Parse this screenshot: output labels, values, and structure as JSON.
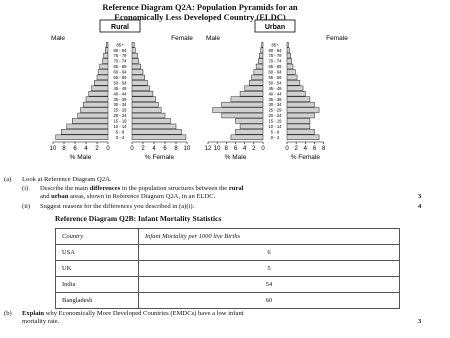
{
  "title": [
    "Reference Diagram Q2A:  Population Pyramids for an",
    "Economically Less Developed Country (ELDC)"
  ],
  "chart_data": [
    {
      "type": "pyramid",
      "title": "Rural",
      "left_label": "Male",
      "right_label": "Female",
      "categories": [
        "85+",
        "80 - 84",
        "75 - 79",
        "70 - 74",
        "65 - 69",
        "60 - 64",
        "55 - 59",
        "50 - 54",
        "45 - 49",
        "40 - 44",
        "35 - 39",
        "30 - 34",
        "25 - 29",
        "20 - 24",
        "15 - 19",
        "10 - 14",
        "5 - 9",
        "0 - 4"
      ],
      "series": [
        {
          "name": "% Male",
          "side": "left",
          "values": [
            0.3,
            0.5,
            0.8,
            1,
            1.5,
            1.8,
            2,
            2.5,
            3,
            3.5,
            4,
            4.5,
            5,
            5.5,
            6.5,
            7.5,
            8.5,
            9.5
          ]
        },
        {
          "name": "% Female",
          "side": "right",
          "values": [
            0.4,
            0.6,
            1,
            1.2,
            1.6,
            2,
            2.3,
            2.8,
            3.2,
            3.8,
            4.3,
            4.8,
            5.3,
            6,
            7,
            8,
            9,
            9.8
          ]
        }
      ],
      "left_xlim": [
        0,
        10
      ],
      "left_xticks": [
        10,
        8,
        6,
        4,
        2,
        0
      ],
      "right_xlim": [
        0,
        10
      ],
      "right_xticks": [
        0,
        2,
        4,
        6,
        8,
        10
      ]
    },
    {
      "type": "pyramid",
      "title": "Urban",
      "left_label": "Male",
      "right_label": "Female",
      "categories": [
        "85+",
        "80 - 84",
        "75 - 79",
        "70 - 74",
        "65 - 69",
        "60 - 64",
        "55 - 59",
        "50 - 54",
        "45 - 49",
        "40 - 44",
        "35 - 39",
        "30 - 34",
        "25 - 29",
        "20 - 24",
        "15 - 19",
        "10 - 14",
        "5 - 9",
        "0 - 4"
      ],
      "series": [
        {
          "name": "% Male",
          "side": "left",
          "values": [
            0.3,
            0.5,
            0.8,
            1,
            1.5,
            2,
            2.5,
            3,
            4,
            5,
            7,
            9,
            11,
            9,
            6,
            5,
            6,
            7
          ]
        },
        {
          "name": "% Female",
          "side": "right",
          "values": [
            0.3,
            0.5,
            0.8,
            1,
            1.3,
            1.8,
            2.2,
            2.8,
            3.5,
            4,
            5,
            6,
            7,
            6,
            5,
            5,
            6,
            7
          ]
        }
      ],
      "left_xlim": [
        0,
        12
      ],
      "left_xticks": [
        12,
        10,
        8,
        6,
        4,
        2,
        0
      ],
      "right_xlim": [
        0,
        8
      ],
      "right_xticks": [
        0,
        2,
        4,
        6,
        8
      ]
    }
  ],
  "questions": [
    {
      "label": "(a)",
      "parts": [
        "Look at Reference Diagram Q2A."
      ]
    },
    {
      "label": "(i)",
      "parts": [
        "Describe the main ",
        "differences",
        " in the population structures between the ",
        "rural",
        "\nand ",
        "urban",
        " areas, shown in Reference Diagram Q2A, in an ELDC."
      ],
      "marks": 3
    },
    {
      "label": "(ii)",
      "parts": [
        "Suggest reasons for the differences you described in (a)(i)."
      ],
      "marks": 4
    }
  ],
  "table_title": "Reference Diagram Q2B:  Infant Mortality Statistics",
  "table": {
    "header": [
      "Country",
      "Infant Mortality per 1000 live Births"
    ],
    "rows": [
      [
        "USA",
        6
      ],
      [
        "UK",
        5
      ],
      [
        "India",
        54
      ],
      [
        "Bangladesh",
        60
      ]
    ]
  },
  "question_b": {
    "label": "(b)",
    "parts": [
      "Explain",
      " why Economically More Developed Countries (EMDCs) have a low infant\nmortality rate."
    ],
    "marks": 3
  }
}
